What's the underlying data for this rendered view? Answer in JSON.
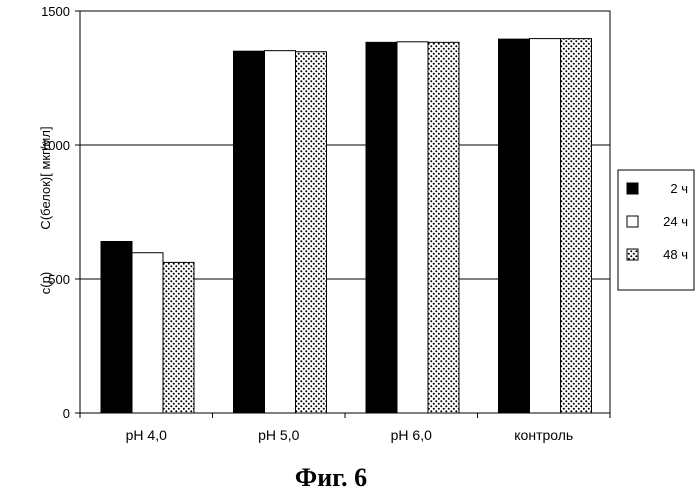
{
  "chart_data": {
    "type": "bar",
    "categories": [
      "pH 4,0",
      "pH 5,0",
      "pH 6,0",
      "контроль"
    ],
    "series": [
      {
        "name": "2 ч",
        "values": [
          640,
          1350,
          1383,
          1395
        ],
        "fill": "solid",
        "color": "#000000"
      },
      {
        "name": "24 ч",
        "values": [
          598,
          1352,
          1385,
          1397
        ],
        "fill": "empty",
        "color": "#ffffff"
      },
      {
        "name": "48 ч",
        "values": [
          562,
          1348,
          1383,
          1397
        ],
        "fill": "dotted",
        "color": "#ffffff"
      }
    ],
    "ylabel_left": "c(p)",
    "ylabel": "C(белок)[ мкг/мл]",
    "ylim": [
      0,
      1500
    ],
    "yticks": [
      0,
      500,
      1000,
      1500
    ],
    "grid": true,
    "legend_position": "right",
    "caption": "Фиг. 6"
  }
}
